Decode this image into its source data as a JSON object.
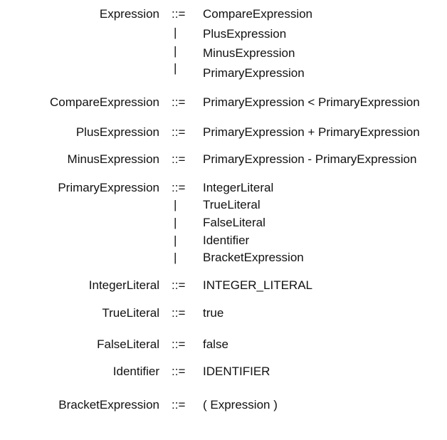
{
  "rules": [
    {
      "lhs": "Expression",
      "op": "::=",
      "alternatives": [
        "CompareExpression",
        "PlusExpression",
        "MinusExpression",
        "PrimaryExpression"
      ]
    },
    {
      "lhs": "CompareExpression",
      "op": "::=",
      "alternatives": [
        "PrimaryExpression < PrimaryExpression"
      ]
    },
    {
      "lhs": "PlusExpression",
      "op": "::=",
      "alternatives": [
        "PrimaryExpression + PrimaryExpression"
      ]
    },
    {
      "lhs": "MinusExpression",
      "op": "::=",
      "alternatives": [
        "PrimaryExpression - PrimaryExpression"
      ]
    },
    {
      "lhs": "PrimaryExpression",
      "op": "::=",
      "alternatives": [
        "IntegerLiteral",
        "TrueLiteral",
        "FalseLiteral",
        "Identifier",
        "BracketExpression"
      ]
    },
    {
      "lhs": "IntegerLiteral",
      "op": "::=",
      "alternatives": [
        "INTEGER_LITERAL"
      ]
    },
    {
      "lhs": "TrueLiteral",
      "op": "::=",
      "alternatives": [
        "true"
      ]
    },
    {
      "lhs": "FalseLiteral",
      "op": "::=",
      "alternatives": [
        "false"
      ]
    },
    {
      "lhs": "Identifier",
      "op": "::=",
      "alternatives": [
        "IDENTIFIER"
      ]
    },
    {
      "lhs": "BracketExpression",
      "op": "::=",
      "alternatives": [
        "( Expression )"
      ]
    }
  ],
  "separator": "|"
}
